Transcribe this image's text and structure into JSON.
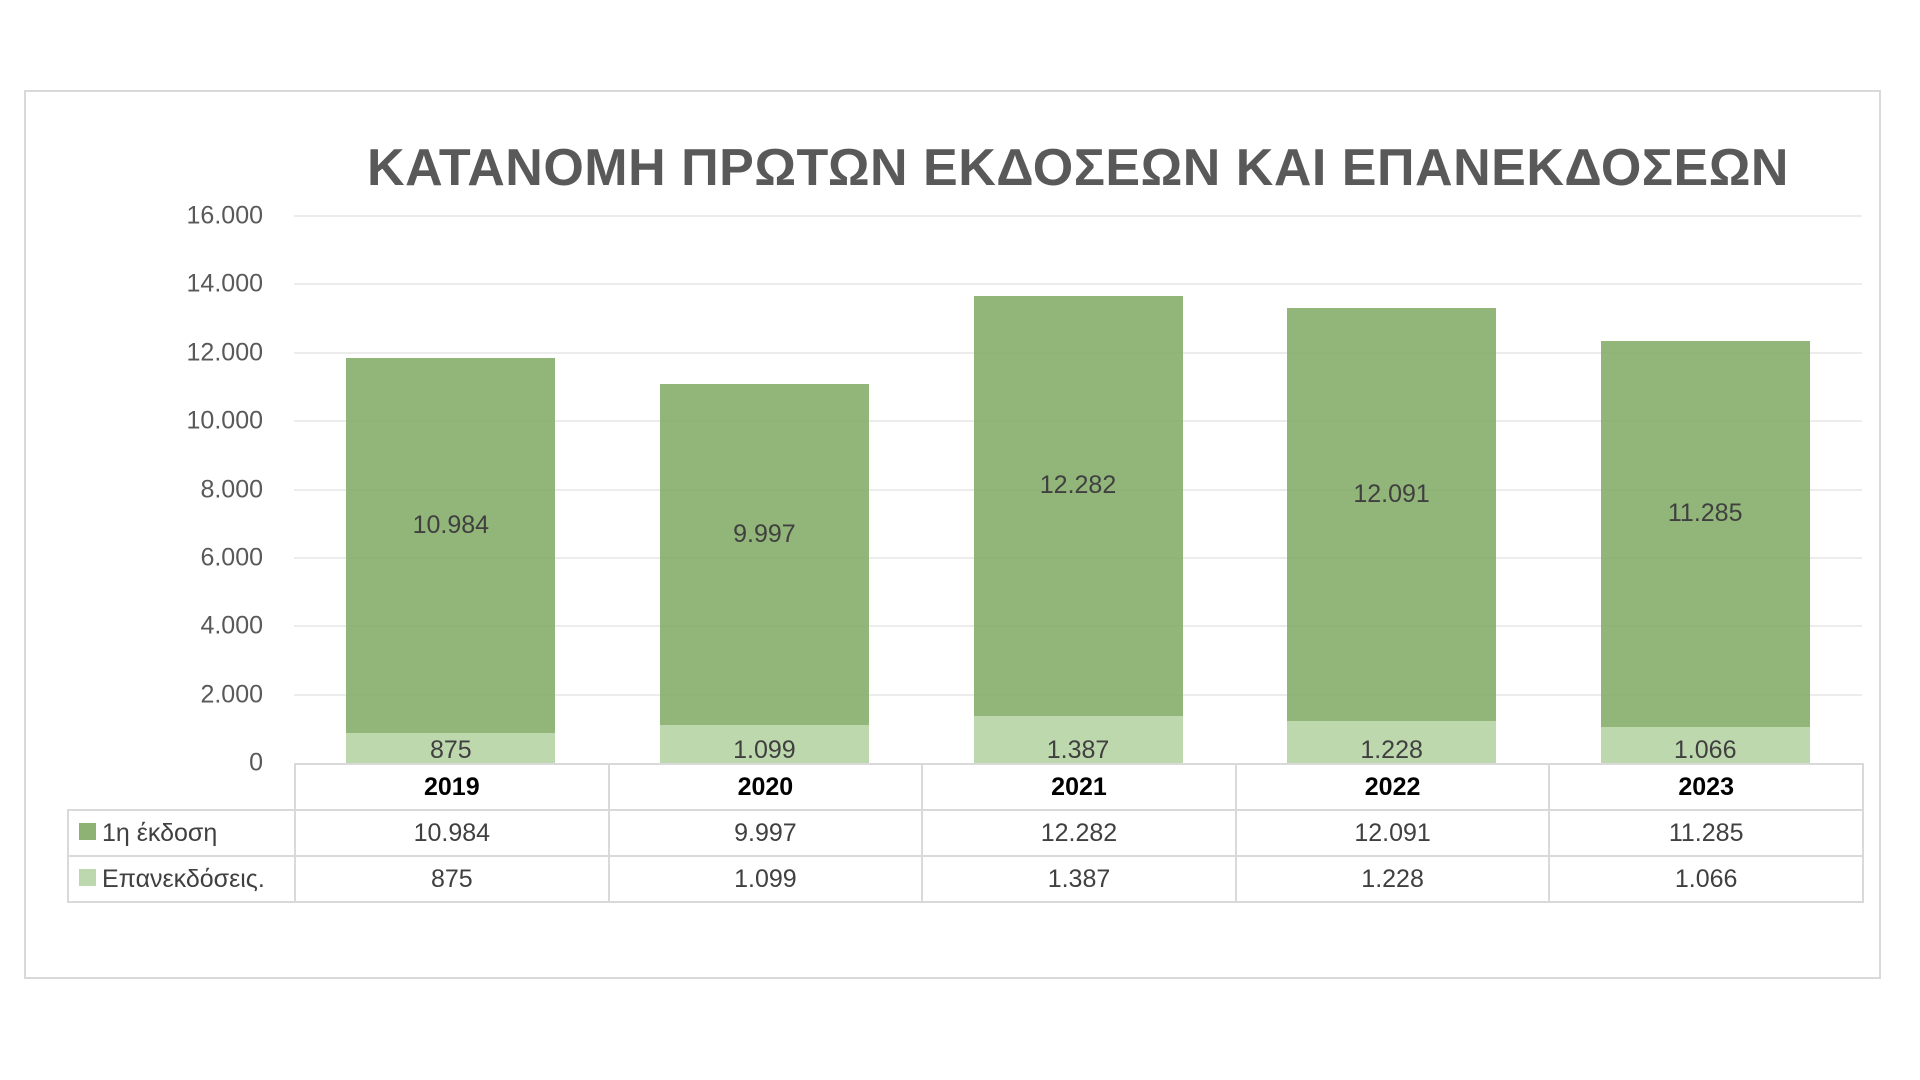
{
  "chart_data": {
    "type": "bar",
    "stacked": true,
    "title": "ΚΑΤΑΝΟΜΗ ΠΡΩΤΩΝ ΕΚΔΟΣΕΩΝ ΚΑΙ ΕΠΑΝΕΚΔΟΣΕΩΝ",
    "categories": [
      "2019",
      "2020",
      "2021",
      "2022",
      "2023"
    ],
    "series": [
      {
        "name": "1η έκδοση",
        "values": [
          10984,
          9997,
          12282,
          12091,
          11285
        ],
        "labels": [
          "10.984",
          "9.997",
          "12.282",
          "12.091",
          "11.285"
        ],
        "color": "#8db274"
      },
      {
        "name": "Επανεκδόσεις.",
        "values": [
          875,
          1099,
          1387,
          1228,
          1066
        ],
        "labels": [
          "875",
          "1.099",
          "1.387",
          "1.228",
          "1.066"
        ],
        "color": "#bdd7ae"
      }
    ],
    "xlabel": "",
    "ylabel": "",
    "ylim": [
      0,
      16000
    ],
    "yticks": [
      0,
      2000,
      4000,
      6000,
      8000,
      10000,
      12000,
      14000,
      16000
    ],
    "ytick_labels": [
      "0",
      "2.000",
      "4.000",
      "6.000",
      "8.000",
      "10.000",
      "12.000",
      "14.000",
      "16.000"
    ],
    "grid": true,
    "legend_position": "data-table",
    "data_table": true
  }
}
